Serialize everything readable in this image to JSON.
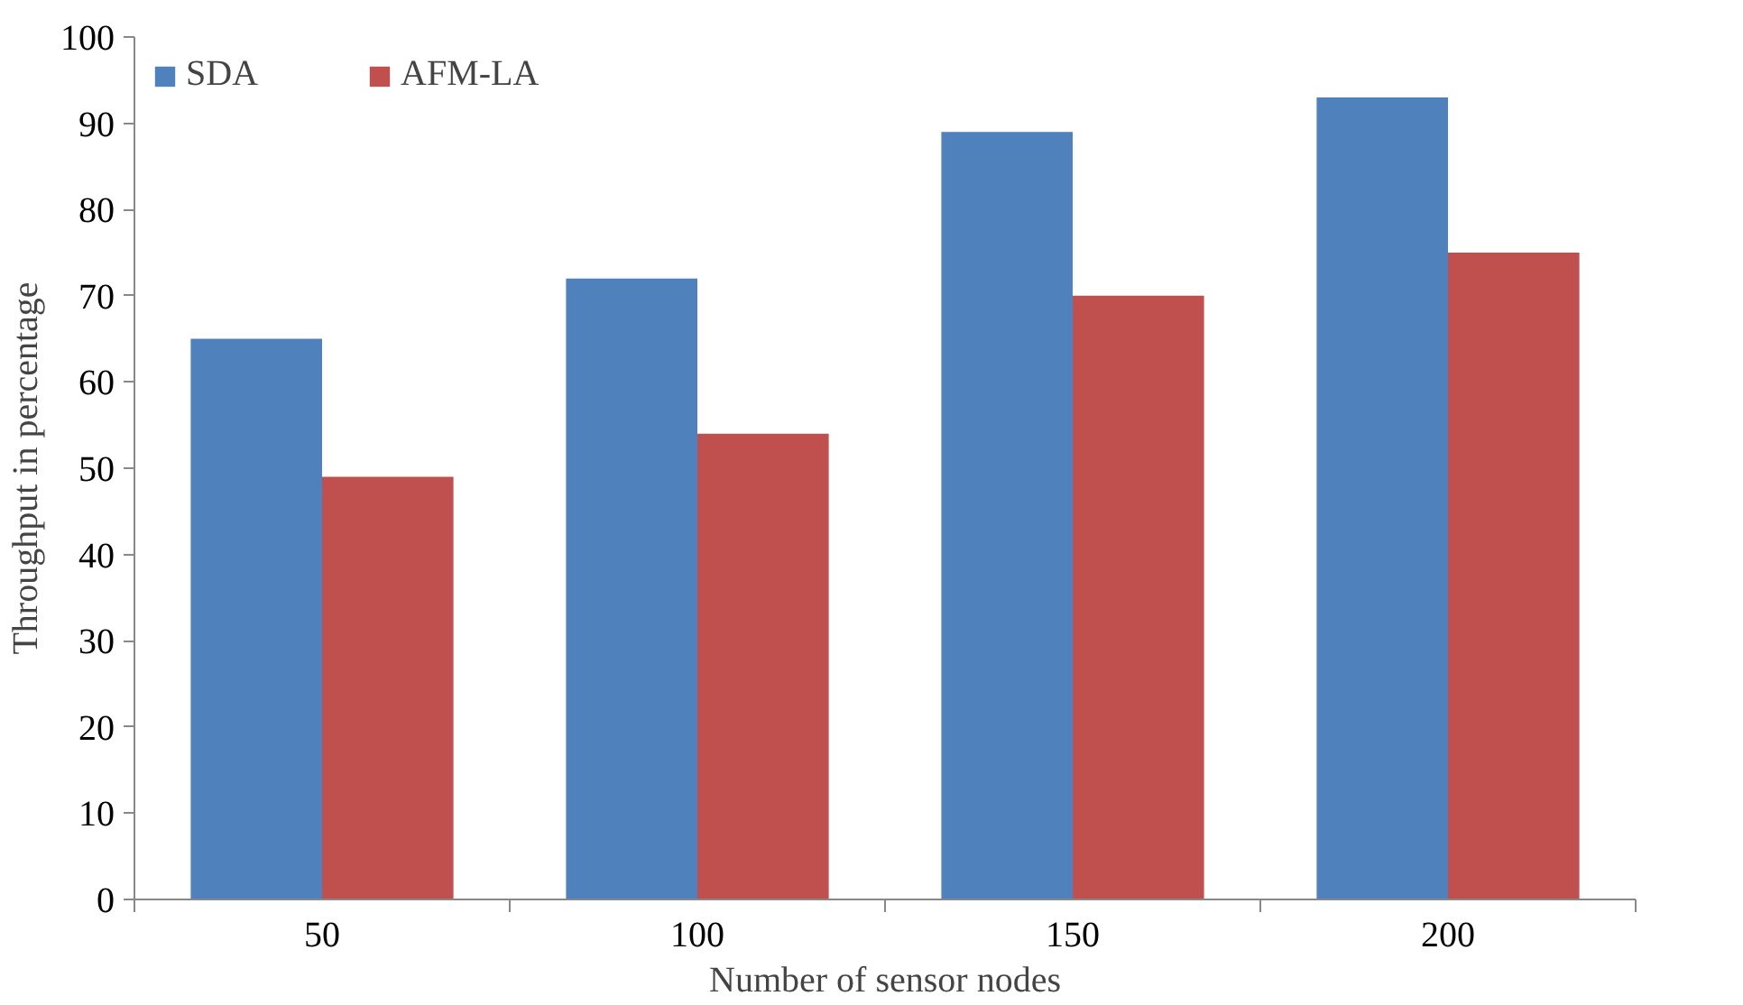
{
  "chart_data": {
    "type": "bar",
    "xlabel": "Number of sensor nodes",
    "ylabel": "Throughput in percentage",
    "categories": [
      "50",
      "100",
      "150",
      "200"
    ],
    "series": [
      {
        "name": "SDA",
        "color": "#4f81bd",
        "values": [
          65,
          72,
          89,
          93
        ]
      },
      {
        "name": "AFM-LA",
        "color": "#c0504d",
        "values": [
          49,
          54,
          70,
          75
        ]
      }
    ],
    "ylim": [
      0,
      100
    ],
    "yticks": [
      0,
      10,
      20,
      30,
      40,
      50,
      60,
      70,
      80,
      90,
      100
    ],
    "grid": false,
    "legend": "top left"
  }
}
